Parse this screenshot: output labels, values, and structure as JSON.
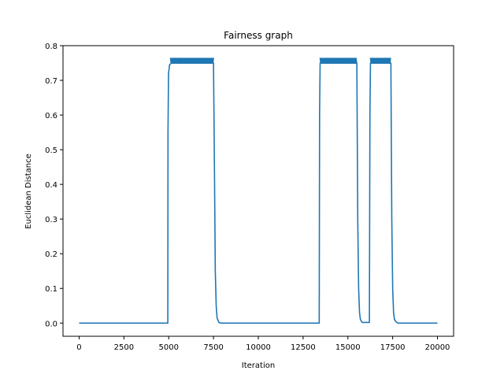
{
  "chart_data": {
    "type": "line",
    "title": "Fairness graph",
    "xlabel": "Iteration",
    "ylabel": "Euclidean Distance",
    "xlim": [
      -900,
      20900
    ],
    "ylim": [
      -0.038,
      0.8
    ],
    "xticks": [
      0,
      2500,
      5000,
      7500,
      10000,
      12500,
      15000,
      17500,
      20000
    ],
    "yticks": [
      0.0,
      0.1,
      0.2,
      0.3,
      0.4,
      0.5,
      0.6,
      0.7,
      0.8
    ],
    "grid": false,
    "legend": "none",
    "series": [
      {
        "color": "#1f77b4",
        "x": [
          0,
          4950,
          4960,
          4990,
          5050,
          5150,
          7500,
          7560,
          7600,
          7650,
          7700,
          7800,
          7900,
          13400,
          13420,
          13450,
          15500,
          15550,
          15600,
          15650,
          15700,
          15800,
          16200,
          16230,
          16260,
          17400,
          17450,
          17500,
          17550,
          17600,
          17700,
          17800,
          20000
        ],
        "y": [
          0.0,
          0.0,
          0.55,
          0.72,
          0.745,
          0.75,
          0.75,
          0.4,
          0.15,
          0.05,
          0.015,
          0.002,
          0.0,
          0.0,
          0.6,
          0.75,
          0.75,
          0.3,
          0.1,
          0.03,
          0.01,
          0.002,
          0.002,
          0.6,
          0.75,
          0.75,
          0.3,
          0.1,
          0.03,
          0.01,
          0.003,
          0.0,
          0.0
        ],
        "oscillation_bands": [
          {
            "x_start": 5100,
            "x_end": 7500,
            "y_low": 0.748,
            "y_high": 0.765
          },
          {
            "x_start": 13450,
            "x_end": 15500,
            "y_low": 0.748,
            "y_high": 0.765
          },
          {
            "x_start": 16260,
            "x_end": 17400,
            "y_low": 0.748,
            "y_high": 0.765
          }
        ]
      }
    ]
  }
}
